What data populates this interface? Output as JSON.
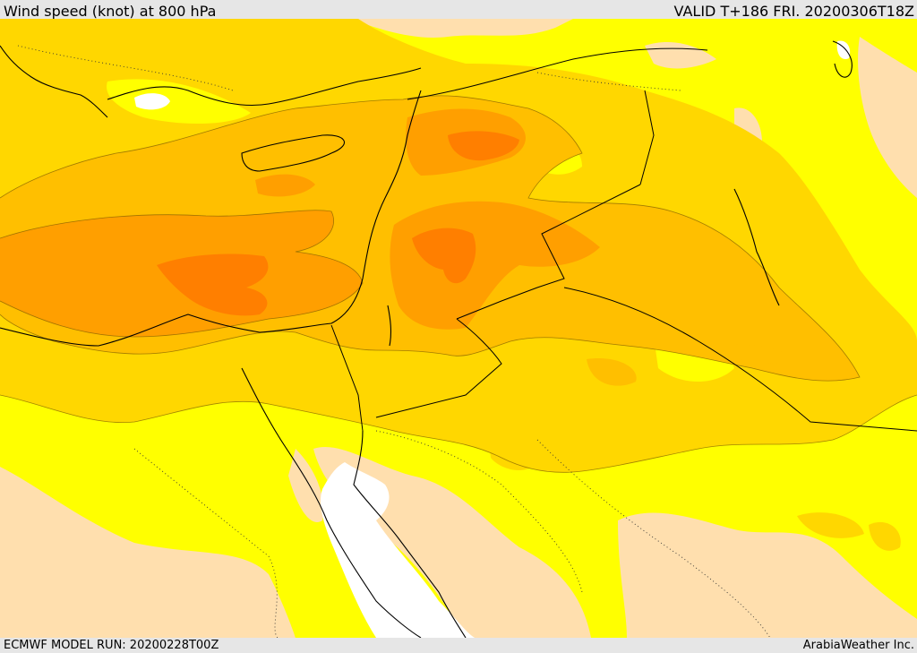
{
  "header": {
    "title": "Wind speed (knot) at 800 hPa",
    "valid": "VALID T+186 FRI. 20200306T18Z"
  },
  "footer": {
    "model_run": "ECMWF MODEL RUN: 20200228T00Z",
    "credit": "ArabiaWeather Inc."
  },
  "map": {
    "fill_colors": {
      "lowest": "#ffffff",
      "low": "#ffdfae",
      "moderate": "#ffff00",
      "elevated": "#ffd700",
      "high": "#ffbf00",
      "very_high": "#ff9f00",
      "highest": "#ff7f00"
    },
    "line_colors": {
      "coastline": "#000000",
      "contour": "#7a5a00"
    }
  }
}
